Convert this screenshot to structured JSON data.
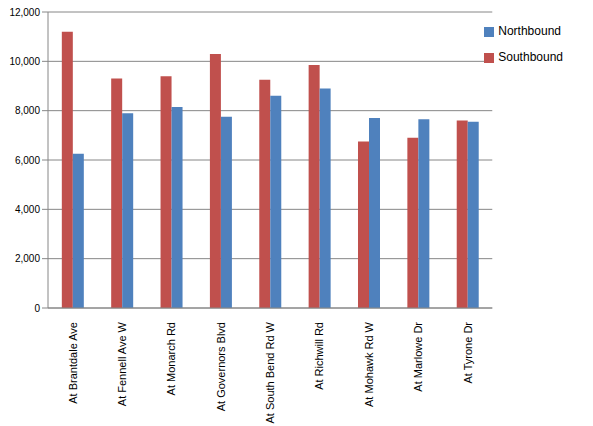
{
  "chart_data": {
    "type": "bar",
    "categories": [
      "At Brantdale Ave",
      "At Fennell Ave W",
      "At Monarch Rd",
      "At Governors Blvd",
      "At South Bend Rd W",
      "At Richwill Rd",
      "At Mohawk Rd W",
      "At Marlowe Dr",
      "At Tyrone Dr"
    ],
    "series": [
      {
        "name": "Southbound",
        "color": "#c0504d",
        "values": [
          11200,
          9300,
          9400,
          10300,
          9250,
          9850,
          6750,
          6900,
          7600
        ]
      },
      {
        "name": "Northbound",
        "color": "#4f81bd",
        "values": [
          6250,
          7900,
          8150,
          7750,
          8600,
          8900,
          7700,
          7650,
          7550
        ]
      }
    ],
    "ylim": [
      0,
      12000
    ],
    "yticks": [
      0,
      {
        "value": 2000,
        "label": "2,000"
      },
      {
        "value": 4000,
        "label": "4,000"
      },
      {
        "value": 6000,
        "label": "6,000"
      },
      {
        "value": 8000,
        "label": "8,000"
      },
      {
        "value": 10000,
        "label": "10,000"
      },
      {
        "value": 12000,
        "label": "12,000"
      }
    ],
    "grid": true,
    "legend": "top-right"
  }
}
